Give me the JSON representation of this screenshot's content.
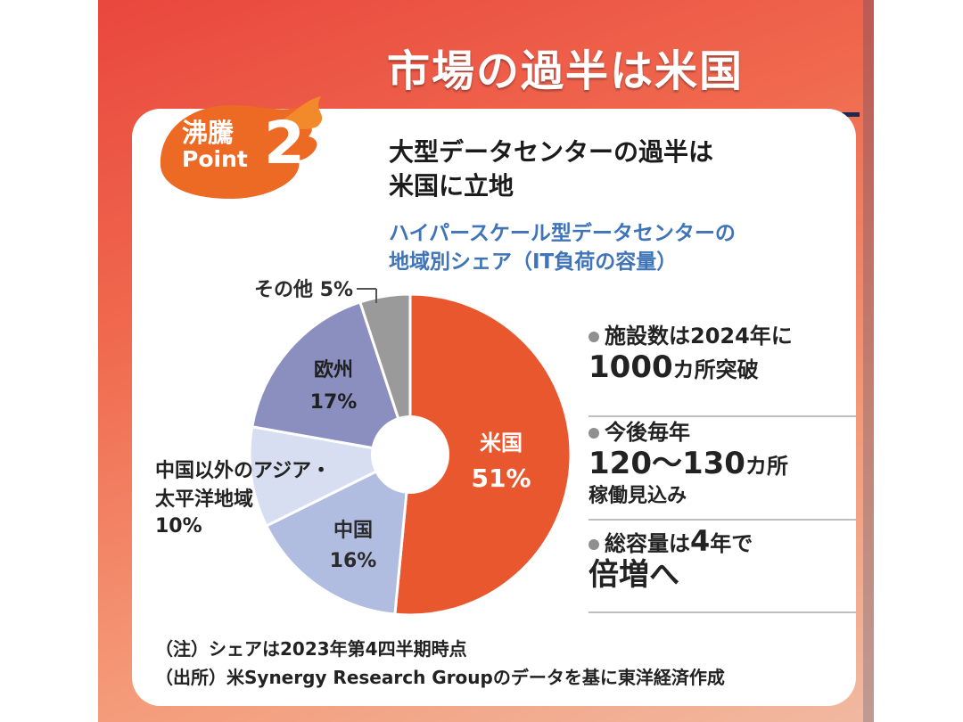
{
  "title": "市場の過半は米国",
  "badge": {
    "label1": "沸騰",
    "label2": "Point",
    "number": "2"
  },
  "heading": {
    "line1": "大型データセンターの過半は",
    "line2": "米国に立地"
  },
  "subheading": {
    "line1": "ハイパースケール型データセンターの",
    "line2": "地域別シェア（IT負荷の容量）"
  },
  "chart_data": {
    "type": "pie",
    "title": "ハイパースケール型データセンターの地域別シェア（IT負荷の容量）",
    "slices": [
      {
        "label": "米国",
        "value": 51,
        "display": "51%",
        "color": "#e9572f"
      },
      {
        "label": "中国",
        "value": 16,
        "display": "16%",
        "color": "#b1bde0"
      },
      {
        "label": "中国以外のアジア・太平洋地域",
        "value": 10,
        "display": "10%",
        "color": "#d7def1"
      },
      {
        "label": "欧州",
        "value": 17,
        "display": "17%",
        "color": "#8b8fc0"
      },
      {
        "label": "その他",
        "value": 5,
        "display": "5%",
        "color": "#9a9a9a"
      }
    ]
  },
  "labels": {
    "us_name": "米国",
    "us_value": "51%",
    "cn_name": "中国",
    "cn_value": "16%",
    "ap_line1": "中国以外のアジア・",
    "ap_line2": "太平洋地域",
    "ap_value": "10%",
    "eu_name": "欧州",
    "eu_value": "17%",
    "other": "その他 5%"
  },
  "callouts": {
    "c1_line1": "施設数は2024年に",
    "c1_line2a": "1000",
    "c1_line2b": "カ所突破",
    "c2_line1": "今後毎年",
    "c2_line2a": "120～130",
    "c2_line2b": "カ所",
    "c2_line3": "稼働見込み",
    "c3_line1a": "総容量は",
    "c3_line1b": "4",
    "c3_line1c": "年で",
    "c3_line2": "倍増へ"
  },
  "notes": {
    "note1": "（注）シェアは2023年第4四半期時点",
    "note2": "（出所）米Synergy Research Groupのデータを基に東洋経済作成"
  },
  "colors": {
    "accent": "#e9572f",
    "navy": "#1d2a4d",
    "blue": "#3f74b8"
  }
}
